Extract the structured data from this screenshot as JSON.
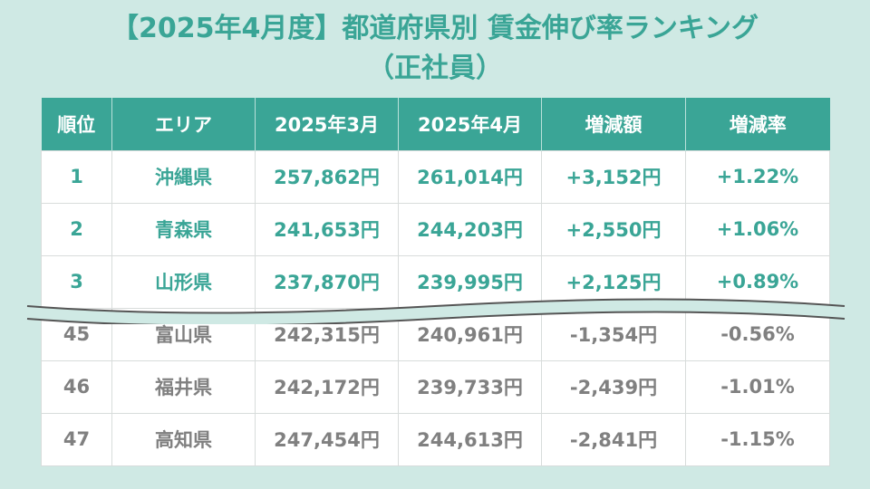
{
  "title": "【2025年4月度】都道府県別 賃金伸び率ランキング",
  "subtitle": "（正社員）",
  "table": {
    "headers": [
      "順位",
      "エリア",
      "2025年3月",
      "2025年4月",
      "増減額",
      "増減率"
    ],
    "top_rows": [
      [
        "1",
        "沖縄県",
        "257,862円",
        "261,014円",
        "+3,152円",
        "+1.22%"
      ],
      [
        "2",
        "青森県",
        "241,653円",
        "244,203円",
        "+2,550円",
        "+1.06%"
      ],
      [
        "3",
        "山形県",
        "237,870円",
        "239,995円",
        "+2,125円",
        "+0.89%"
      ]
    ],
    "bottom_rows": [
      [
        "45",
        "富山県",
        "242,315円",
        "240,961円",
        "-1,354円",
        "-0.56%"
      ],
      [
        "46",
        "福井県",
        "242,172円",
        "239,733円",
        "-2,439円",
        "-1.01%"
      ],
      [
        "47",
        "高知県",
        "247,454円",
        "244,613円",
        "-2,841円",
        "-1.15%"
      ]
    ]
  },
  "colors": {
    "background": "#cfe9e4",
    "accent": "#3aa596",
    "muted_text": "#808080"
  }
}
